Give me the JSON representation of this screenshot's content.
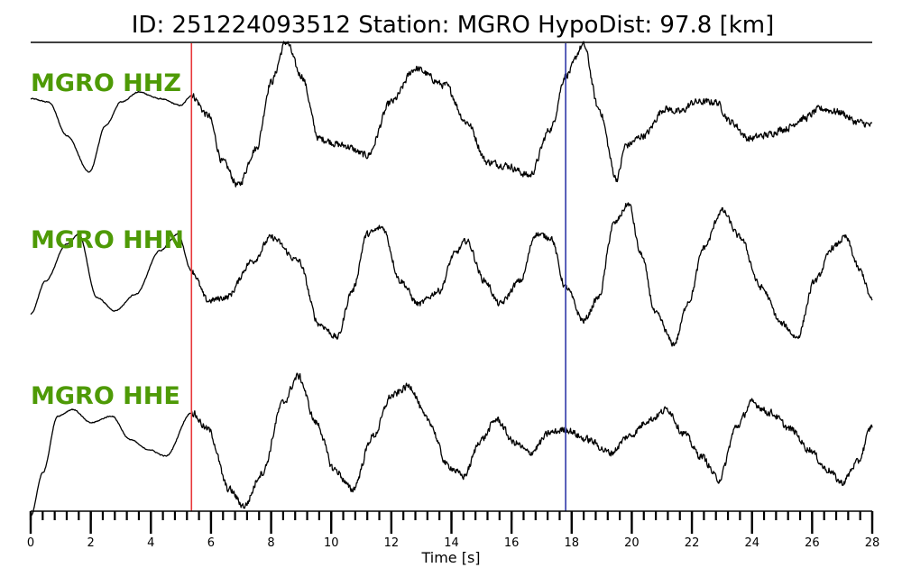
{
  "title": "ID: 251224093512   Station: MGRO   HypoDist:    97.8 [km]",
  "colors": {
    "channel_label": "#4e9a06",
    "p_marker": "#e8383b",
    "s_marker": "#2f39a8",
    "trace": "#000000"
  },
  "chart_data": {
    "type": "line",
    "title": "ID: 251224093512   Station: MGRO   HypoDist:    97.8 [km]",
    "xlabel": "Time [s]",
    "ylabel": "",
    "xlim": [
      0,
      28
    ],
    "x_ticks": [
      0,
      2,
      4,
      6,
      8,
      10,
      12,
      14,
      16,
      18,
      20,
      22,
      24,
      26,
      28
    ],
    "minor_tick_step": 0.4,
    "grid": false,
    "markers": [
      {
        "time": 5.35
      },
      {
        "time": 17.8
      }
    ],
    "series": [
      {
        "name": "MGRO HHZ",
        "anchors": [
          [
            0,
            0.25
          ],
          [
            0.6,
            0.2
          ],
          [
            1.2,
            -0.3
          ],
          [
            1.95,
            -0.85
          ],
          [
            2.5,
            -0.15
          ],
          [
            3.0,
            0.2
          ],
          [
            3.6,
            0.35
          ],
          [
            4.3,
            0.25
          ],
          [
            5.0,
            0.15
          ],
          [
            5.35,
            0.3
          ],
          [
            5.9,
            0.0
          ],
          [
            6.4,
            -0.7
          ],
          [
            6.9,
            -1.05
          ],
          [
            7.5,
            -0.5
          ],
          [
            8.0,
            0.5
          ],
          [
            8.5,
            1.1
          ],
          [
            9.0,
            0.6
          ],
          [
            9.6,
            -0.35
          ],
          [
            10.4,
            -0.45
          ],
          [
            11.2,
            -0.6
          ],
          [
            12.0,
            0.2
          ],
          [
            12.8,
            0.7
          ],
          [
            13.8,
            0.45
          ],
          [
            14.5,
            -0.1
          ],
          [
            15.2,
            -0.7
          ],
          [
            15.8,
            -0.75
          ],
          [
            16.6,
            -0.9
          ],
          [
            17.3,
            -0.2
          ],
          [
            17.8,
            0.6
          ],
          [
            18.4,
            1.05
          ],
          [
            18.9,
            0.1
          ],
          [
            19.5,
            -0.95
          ],
          [
            19.8,
            -0.45
          ],
          [
            20.4,
            -0.3
          ],
          [
            21.1,
            0.1
          ],
          [
            21.6,
            0.05
          ],
          [
            22.1,
            0.2
          ],
          [
            22.8,
            0.2
          ],
          [
            23.3,
            -0.1
          ],
          [
            23.9,
            -0.35
          ],
          [
            24.4,
            -0.3
          ],
          [
            25.1,
            -0.2
          ],
          [
            25.7,
            -0.05
          ],
          [
            26.3,
            0.1
          ],
          [
            26.9,
            0.05
          ],
          [
            27.5,
            -0.1
          ],
          [
            28,
            -0.15
          ]
        ],
        "noise_amplitude": 0.08
      },
      {
        "name": "MGRO HHN",
        "anchors": [
          [
            0,
            -0.6
          ],
          [
            0.5,
            -0.1
          ],
          [
            1.2,
            0.45
          ],
          [
            1.6,
            0.6
          ],
          [
            2.2,
            -0.35
          ],
          [
            2.8,
            -0.55
          ],
          [
            3.5,
            -0.3
          ],
          [
            4.3,
            0.35
          ],
          [
            4.9,
            0.6
          ],
          [
            5.35,
            0.05
          ],
          [
            5.9,
            -0.4
          ],
          [
            6.5,
            -0.35
          ],
          [
            7.4,
            0.2
          ],
          [
            8.0,
            0.55
          ],
          [
            8.9,
            0.2
          ],
          [
            9.6,
            -0.75
          ],
          [
            10.2,
            -0.95
          ],
          [
            10.7,
            -0.25
          ],
          [
            11.2,
            0.6
          ],
          [
            11.7,
            0.7
          ],
          [
            12.3,
            -0.1
          ],
          [
            12.9,
            -0.45
          ],
          [
            13.6,
            -0.25
          ],
          [
            14.1,
            0.3
          ],
          [
            14.5,
            0.5
          ],
          [
            15.1,
            -0.1
          ],
          [
            15.6,
            -0.45
          ],
          [
            16.3,
            -0.1
          ],
          [
            16.8,
            0.6
          ],
          [
            17.3,
            0.55
          ],
          [
            17.8,
            -0.2
          ],
          [
            18.4,
            -0.7
          ],
          [
            18.9,
            -0.35
          ],
          [
            19.4,
            0.75
          ],
          [
            19.9,
            1.05
          ],
          [
            20.3,
            0.3
          ],
          [
            20.8,
            -0.6
          ],
          [
            21.4,
            -1.05
          ],
          [
            21.9,
            -0.4
          ],
          [
            22.4,
            0.4
          ],
          [
            23.0,
            0.95
          ],
          [
            23.6,
            0.55
          ],
          [
            24.3,
            -0.2
          ],
          [
            25.0,
            -0.75
          ],
          [
            25.5,
            -0.95
          ],
          [
            26.1,
            -0.1
          ],
          [
            26.7,
            0.4
          ],
          [
            27.1,
            0.55
          ],
          [
            27.6,
            0.05
          ],
          [
            28,
            -0.4
          ]
        ],
        "noise_amplitude": 0.07
      },
      {
        "name": "MGRO HHE",
        "anchors": [
          [
            0,
            -1.25
          ],
          [
            0.4,
            -0.6
          ],
          [
            0.9,
            0.25
          ],
          [
            1.4,
            0.35
          ],
          [
            2.0,
            0.15
          ],
          [
            2.7,
            0.25
          ],
          [
            3.3,
            -0.1
          ],
          [
            3.9,
            -0.25
          ],
          [
            4.5,
            -0.35
          ],
          [
            5.35,
            0.3
          ],
          [
            5.9,
            0.05
          ],
          [
            6.6,
            -0.85
          ],
          [
            7.1,
            -1.1
          ],
          [
            7.7,
            -0.6
          ],
          [
            8.4,
            0.45
          ],
          [
            8.9,
            0.85
          ],
          [
            9.5,
            0.15
          ],
          [
            10.1,
            -0.55
          ],
          [
            10.7,
            -0.85
          ],
          [
            11.4,
            -0.05
          ],
          [
            12.0,
            0.55
          ],
          [
            12.6,
            0.7
          ],
          [
            13.2,
            0.2
          ],
          [
            13.9,
            -0.5
          ],
          [
            14.4,
            -0.65
          ],
          [
            15.0,
            -0.1
          ],
          [
            15.5,
            0.2
          ],
          [
            16.1,
            -0.15
          ],
          [
            16.6,
            -0.3
          ],
          [
            17.3,
            0.0
          ],
          [
            17.8,
            0.05
          ],
          [
            18.5,
            -0.1
          ],
          [
            19.3,
            -0.3
          ],
          [
            19.9,
            -0.05
          ],
          [
            20.6,
            0.2
          ],
          [
            21.2,
            0.35
          ],
          [
            21.7,
            0.0
          ],
          [
            22.3,
            -0.35
          ],
          [
            22.9,
            -0.7
          ],
          [
            23.5,
            0.1
          ],
          [
            24.0,
            0.45
          ],
          [
            24.6,
            0.3
          ],
          [
            25.3,
            0.05
          ],
          [
            25.9,
            -0.25
          ],
          [
            26.5,
            -0.55
          ],
          [
            27.0,
            -0.75
          ],
          [
            27.5,
            -0.45
          ],
          [
            28,
            0.1
          ]
        ],
        "noise_amplitude": 0.08
      }
    ]
  }
}
